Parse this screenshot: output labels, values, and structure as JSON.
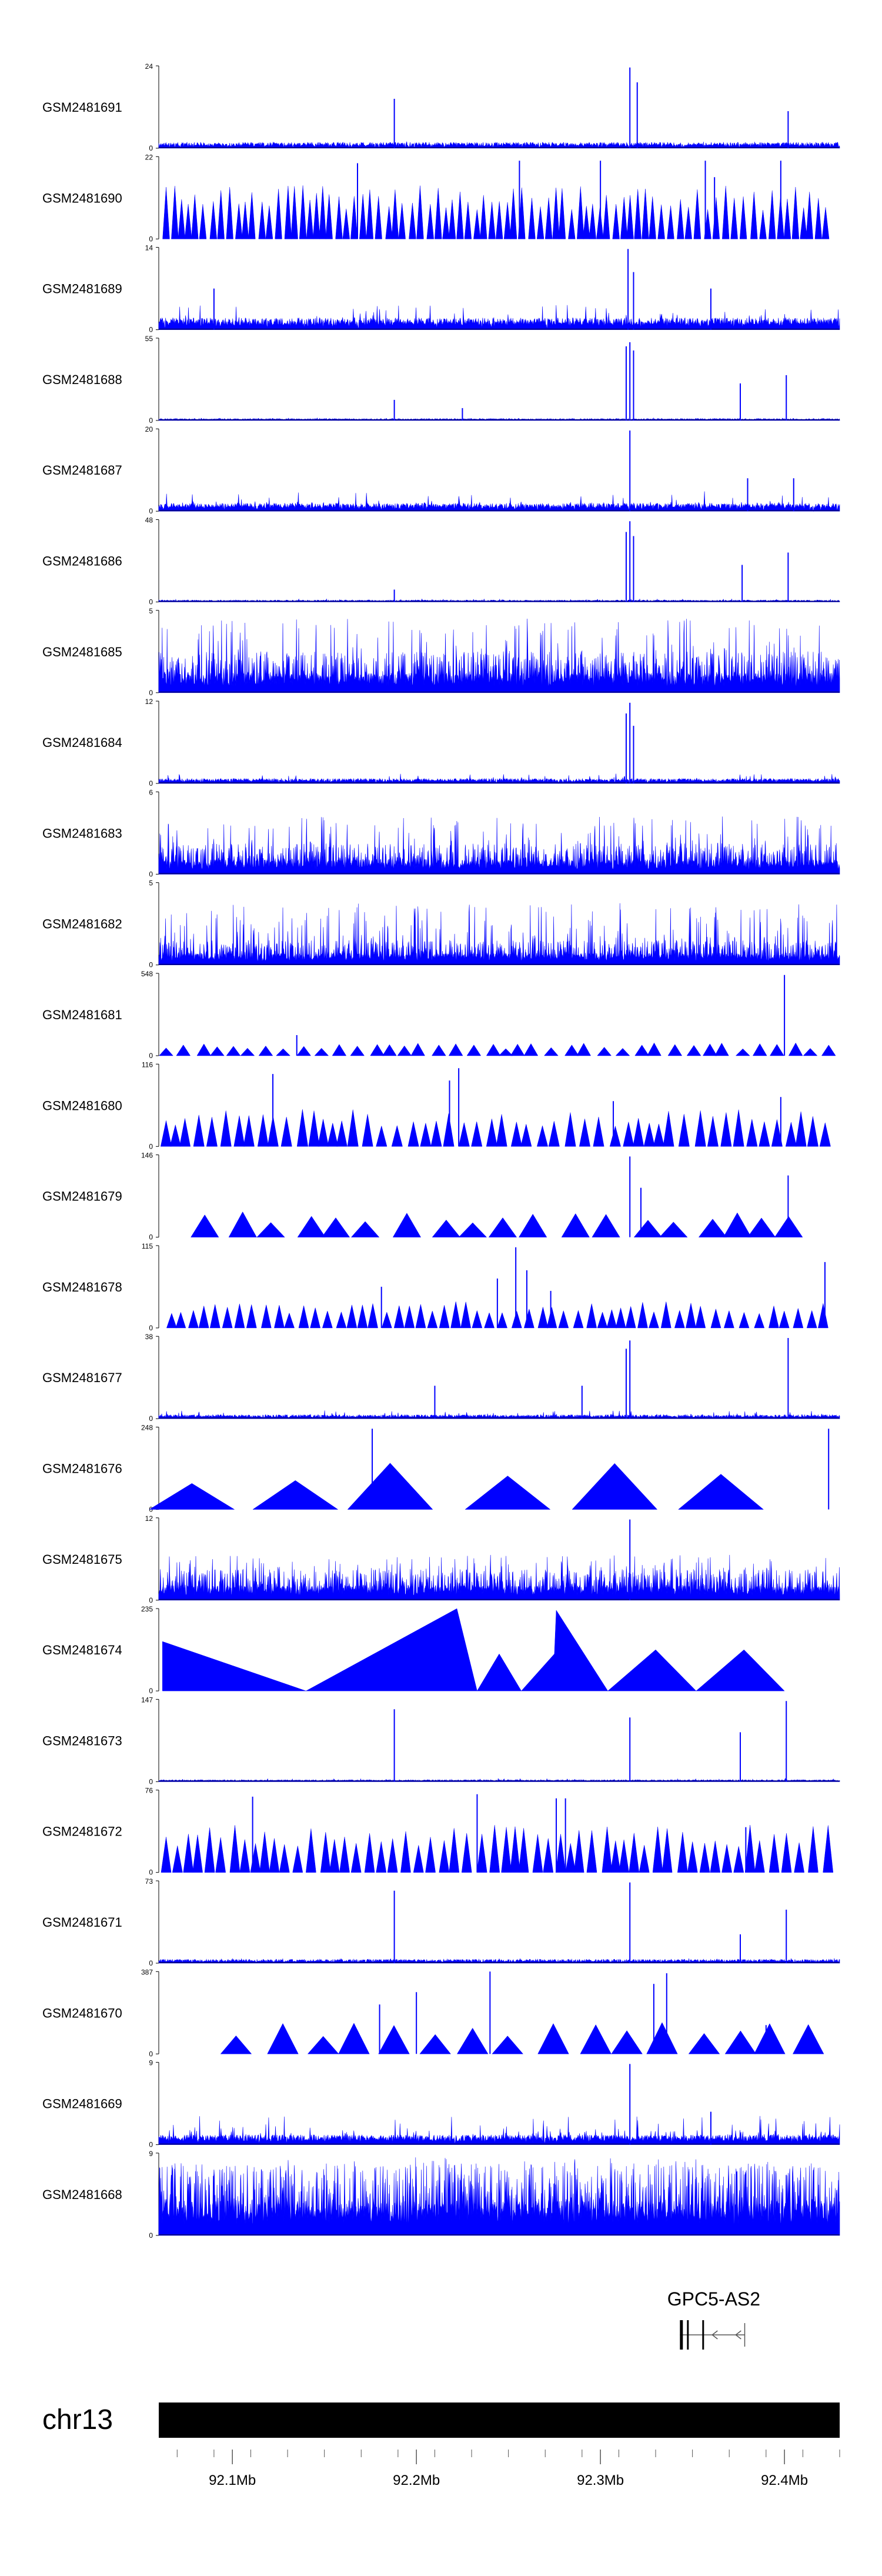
{
  "chart_data": {
    "type": "area",
    "chromosome": "chr13",
    "xlim": [
      92.06,
      92.43
    ],
    "xunit": "Mb",
    "x_ticks": [
      {
        "value": 92.1,
        "label": "92.1Mb"
      },
      {
        "value": 92.2,
        "label": "92.2Mb"
      },
      {
        "value": 92.3,
        "label": "92.3Mb"
      },
      {
        "value": 92.4,
        "label": "92.4Mb"
      }
    ],
    "gene": {
      "name": "GPC5-AS2",
      "start": 92.34,
      "end": 92.38,
      "strand": "-"
    },
    "series": [
      {
        "name": "GSM2481691",
        "ymax": "24",
        "ymin": "0",
        "style": "dense",
        "baseline": 0.06,
        "noise": 0.08,
        "spikes": [
          [
            92.188,
            0.6
          ],
          [
            92.316,
            0.98
          ],
          [
            92.32,
            0.8
          ],
          [
            92.402,
            0.45
          ]
        ]
      },
      {
        "name": "GSM2481690",
        "ymax": "22",
        "ymin": "0",
        "style": "tri",
        "spacing": 0.0045,
        "height": 0.5,
        "spikes": [
          [
            92.168,
            0.92
          ],
          [
            92.256,
            0.95
          ],
          [
            92.3,
            0.95
          ],
          [
            92.357,
            0.95
          ],
          [
            92.362,
            0.75
          ],
          [
            92.398,
            0.95
          ]
        ]
      },
      {
        "name": "GSM2481689",
        "ymax": "14",
        "ymin": "0",
        "style": "dense",
        "baseline": 0.12,
        "noise": 0.3,
        "spikes": [
          [
            92.315,
            0.98
          ],
          [
            92.318,
            0.7
          ],
          [
            92.09,
            0.5
          ],
          [
            92.36,
            0.5
          ]
        ]
      },
      {
        "name": "GSM2481688",
        "ymax": "55",
        "ymin": "0",
        "style": "dense",
        "baseline": 0.02,
        "noise": 0.03,
        "spikes": [
          [
            92.188,
            0.25
          ],
          [
            92.225,
            0.15
          ],
          [
            92.314,
            0.9
          ],
          [
            92.316,
            0.95
          ],
          [
            92.318,
            0.85
          ],
          [
            92.376,
            0.45
          ],
          [
            92.401,
            0.55
          ]
        ]
      },
      {
        "name": "GSM2481687",
        "ymax": "20",
        "ymin": "0",
        "style": "dense",
        "baseline": 0.08,
        "noise": 0.25,
        "spikes": [
          [
            92.316,
            0.98
          ],
          [
            92.405,
            0.4
          ],
          [
            92.38,
            0.4
          ]
        ]
      },
      {
        "name": "GSM2481686",
        "ymax": "48",
        "ymin": "0",
        "style": "dense",
        "baseline": 0.02,
        "noise": 0.04,
        "spikes": [
          [
            92.188,
            0.15
          ],
          [
            92.314,
            0.85
          ],
          [
            92.316,
            0.98
          ],
          [
            92.318,
            0.8
          ],
          [
            92.377,
            0.45
          ],
          [
            92.402,
            0.6
          ]
        ]
      },
      {
        "name": "GSM2481685",
        "ymax": "5",
        "ymin": "0",
        "style": "bars",
        "baseline": 0.2,
        "noise": 0.9
      },
      {
        "name": "GSM2481684",
        "ymax": "12",
        "ymin": "0",
        "style": "dense",
        "baseline": 0.05,
        "noise": 0.12,
        "spikes": [
          [
            92.314,
            0.85
          ],
          [
            92.316,
            0.98
          ],
          [
            92.318,
            0.7
          ]
        ]
      },
      {
        "name": "GSM2481683",
        "ymax": "6",
        "ymin": "0",
        "style": "bars",
        "baseline": 0.15,
        "noise": 0.7
      },
      {
        "name": "GSM2481682",
        "ymax": "5",
        "ymin": "0",
        "style": "bars",
        "baseline": 0.12,
        "noise": 0.75
      },
      {
        "name": "GSM2481681",
        "ymax": "548",
        "ymin": "0",
        "style": "tri",
        "spacing": 0.009,
        "height": 0.12,
        "spikes": [
          [
            92.135,
            0.25
          ],
          [
            92.4,
            0.98
          ]
        ]
      },
      {
        "name": "GSM2481680",
        "ymax": "116",
        "ymin": "0",
        "style": "tri",
        "spacing": 0.007,
        "height": 0.35,
        "spikes": [
          [
            92.122,
            0.88
          ],
          [
            92.218,
            0.8
          ],
          [
            92.223,
            0.95
          ],
          [
            92.307,
            0.55
          ],
          [
            92.398,
            0.6
          ]
        ]
      },
      {
        "name": "GSM2481679",
        "ymax": "146",
        "ymin": "0",
        "style": "tri",
        "spacing": 0.018,
        "height": 0.25,
        "start": 92.085,
        "end": 92.415,
        "spikes": [
          [
            92.316,
            0.98
          ],
          [
            92.322,
            0.6
          ],
          [
            92.402,
            0.75
          ]
        ]
      },
      {
        "name": "GSM2481678",
        "ymax": "115",
        "ymin": "0",
        "style": "tri",
        "spacing": 0.0065,
        "height": 0.25,
        "start": 92.067,
        "spikes": [
          [
            92.181,
            0.5
          ],
          [
            92.244,
            0.6
          ],
          [
            92.254,
            0.98
          ],
          [
            92.26,
            0.7
          ],
          [
            92.273,
            0.45
          ],
          [
            92.422,
            0.8
          ]
        ]
      },
      {
        "name": "GSM2481677",
        "ymax": "38",
        "ymin": "0",
        "style": "dense",
        "baseline": 0.04,
        "noise": 0.1,
        "spikes": [
          [
            92.314,
            0.85
          ],
          [
            92.316,
            0.95
          ],
          [
            92.402,
            0.98
          ],
          [
            92.21,
            0.4
          ],
          [
            92.29,
            0.4
          ]
        ]
      },
      {
        "name": "GSM2481676",
        "ymax": "248",
        "ymin": "0",
        "style": "tri",
        "spacing": 0.055,
        "height": 0.45,
        "start": 92.078,
        "end": 92.425,
        "spikes": [
          [
            92.176,
            0.98
          ],
          [
            92.424,
            0.98
          ]
        ]
      },
      {
        "name": "GSM2481675",
        "ymax": "12",
        "ymin": "0",
        "style": "bars",
        "baseline": 0.15,
        "noise": 0.55,
        "spikes": [
          [
            92.316,
            0.98
          ]
        ]
      },
      {
        "name": "GSM2481674",
        "ymax": "235",
        "ymin": "0",
        "style": "poly",
        "points": [
          [
            92.062,
            0.6
          ],
          [
            92.14,
            0.0
          ],
          [
            92.222,
            1.0
          ],
          [
            92.233,
            0.0
          ],
          [
            92.245,
            0.45
          ],
          [
            92.257,
            0.0
          ],
          [
            92.275,
            0.45
          ],
          [
            92.276,
            0.98
          ],
          [
            92.304,
            0.0
          ],
          [
            92.33,
            0.5
          ],
          [
            92.352,
            0.0
          ],
          [
            92.378,
            0.5
          ],
          [
            92.4,
            0.0
          ]
        ]
      },
      {
        "name": "GSM2481673",
        "ymax": "147",
        "ymin": "0",
        "style": "dense",
        "baseline": 0.02,
        "noise": 0.04,
        "spikes": [
          [
            92.188,
            0.88
          ],
          [
            92.316,
            0.78
          ],
          [
            92.376,
            0.6
          ],
          [
            92.401,
            0.98
          ]
        ]
      },
      {
        "name": "GSM2481672",
        "ymax": "76",
        "ymin": "0",
        "style": "tri",
        "spacing": 0.0065,
        "height": 0.45,
        "spikes": [
          [
            92.111,
            0.92
          ],
          [
            92.233,
            0.95
          ],
          [
            92.276,
            0.9
          ],
          [
            92.281,
            0.9
          ],
          [
            92.379,
            0.55
          ]
        ]
      },
      {
        "name": "GSM2481671",
        "ymax": "73",
        "ymin": "0",
        "style": "dense",
        "baseline": 0.04,
        "noise": 0.06,
        "spikes": [
          [
            92.188,
            0.88
          ],
          [
            92.316,
            0.98
          ],
          [
            92.376,
            0.35
          ],
          [
            92.401,
            0.65
          ]
        ]
      },
      {
        "name": "GSM2481670",
        "ymax": "387",
        "ymin": "0",
        "style": "tri",
        "spacing": 0.02,
        "height": 0.3,
        "start": 92.102,
        "end": 92.418,
        "spikes": [
          [
            92.18,
            0.6
          ],
          [
            92.2,
            0.75
          ],
          [
            92.24,
            1.0
          ],
          [
            92.336,
            0.98
          ],
          [
            92.329,
            0.85
          ],
          [
            92.39,
            0.35
          ]
        ]
      },
      {
        "name": "GSM2481669",
        "ymax": "9",
        "ymin": "0",
        "style": "dense",
        "baseline": 0.1,
        "noise": 0.35,
        "spikes": [
          [
            92.316,
            0.98
          ],
          [
            92.36,
            0.4
          ]
        ]
      },
      {
        "name": "GSM2481668",
        "ymax": "9",
        "ymin": "0",
        "style": "bars",
        "baseline": 0.35,
        "noise": 0.95
      }
    ]
  }
}
